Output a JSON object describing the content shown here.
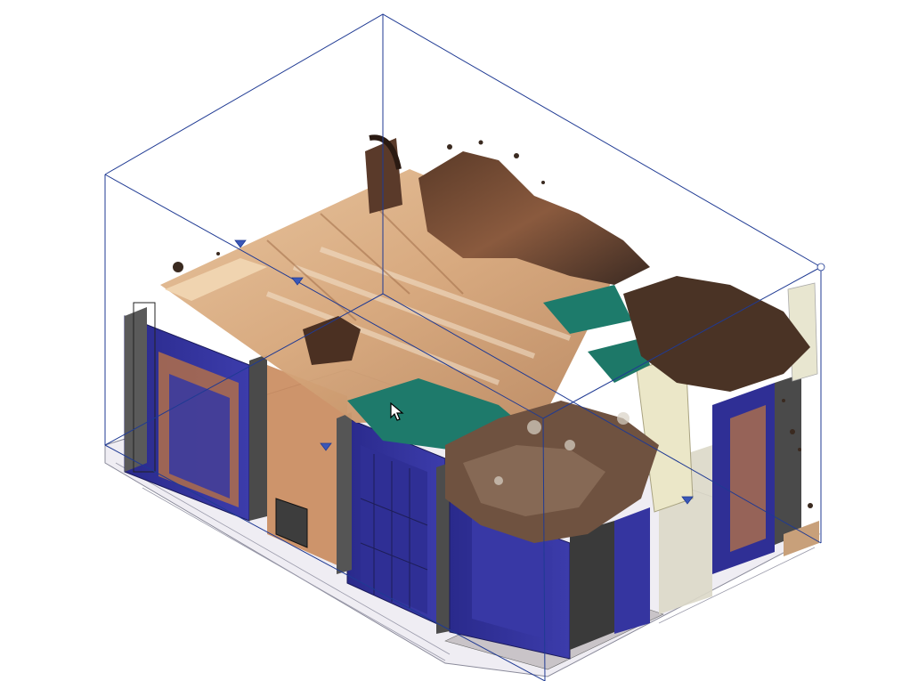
{
  "viewport": {
    "view": "3D isometric",
    "background_color": "#ffffff",
    "section_box_color": "#1f3a93"
  },
  "scene": {
    "model": "point-cloud-interior",
    "walls_color": "#2f2f8f",
    "floor_color": "#e9e6ee",
    "ceiling_color": "#d4a679",
    "accent_teal": "#1f7a6a"
  },
  "cursor": {
    "icon": "arrow-cursor-icon"
  }
}
